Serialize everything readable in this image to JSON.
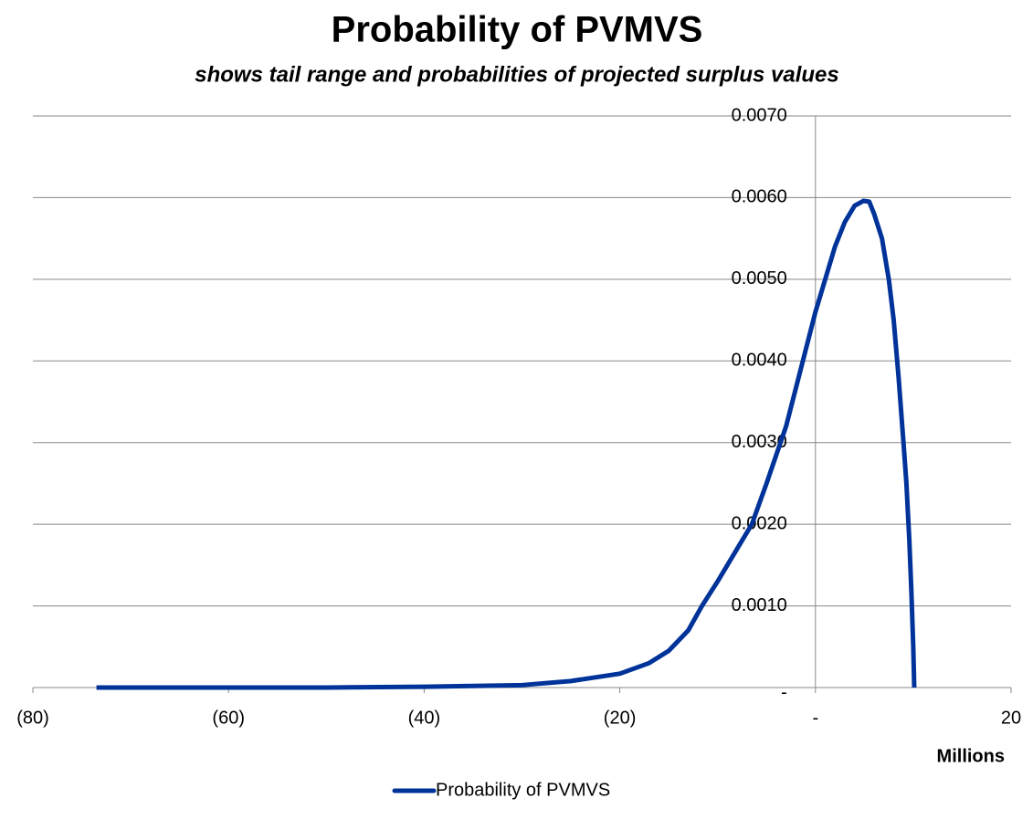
{
  "chart_data": {
    "type": "line",
    "title": "Probability of PVMVS",
    "subtitle": "shows tail range and probabilities of projected surplus values",
    "x_label": "Millions",
    "x": [
      -73.5,
      -60,
      -50,
      -40,
      -35,
      -30,
      -25,
      -20,
      -17,
      -15,
      -13,
      -11.6,
      -10,
      -8,
      -6.5,
      -5,
      -3,
      -1.5,
      0,
      1,
      2,
      3,
      4,
      4.9,
      5.5,
      6,
      6.8,
      7.5,
      8,
      8.5,
      9,
      9.3,
      9.6,
      9.8,
      10,
      10.1
    ],
    "series": [
      {
        "name": "Probability of PVMVS",
        "color": "#003399",
        "values": [
          0,
          0,
          0,
          1e-05,
          2e-05,
          3e-05,
          8e-05,
          0.00017,
          0.0003,
          0.00045,
          0.0007,
          0.001,
          0.0013,
          0.0017,
          0.002,
          0.0025,
          0.0032,
          0.0039,
          0.0046,
          0.005,
          0.0054,
          0.0057,
          0.0059,
          0.00596,
          0.00595,
          0.0058,
          0.0055,
          0.005,
          0.0045,
          0.0038,
          0.003,
          0.0025,
          0.0018,
          0.0012,
          0.0005,
          0
        ]
      }
    ],
    "xlim": [
      -80,
      20
    ],
    "xticks": [
      {
        "value": -80,
        "label": "(80)"
      },
      {
        "value": -60,
        "label": "(60)"
      },
      {
        "value": -40,
        "label": "(40)"
      },
      {
        "value": -20,
        "label": "(20)"
      },
      {
        "value": 0,
        "label": "-"
      },
      20
    ],
    "ylim": [
      0,
      0.007
    ],
    "yticks": [
      {
        "value": 0,
        "label": "-"
      },
      {
        "value": 0.001,
        "label": "0.0010"
      },
      {
        "value": 0.002,
        "label": "0.0020"
      },
      {
        "value": 0.003,
        "label": "0.0030"
      },
      {
        "value": 0.004,
        "label": "0.0040"
      },
      {
        "value": 0.005,
        "label": "0.0050"
      },
      {
        "value": 0.006,
        "label": "0.0060"
      },
      {
        "value": 0.007,
        "label": "0.0070"
      }
    ],
    "grid": true
  }
}
